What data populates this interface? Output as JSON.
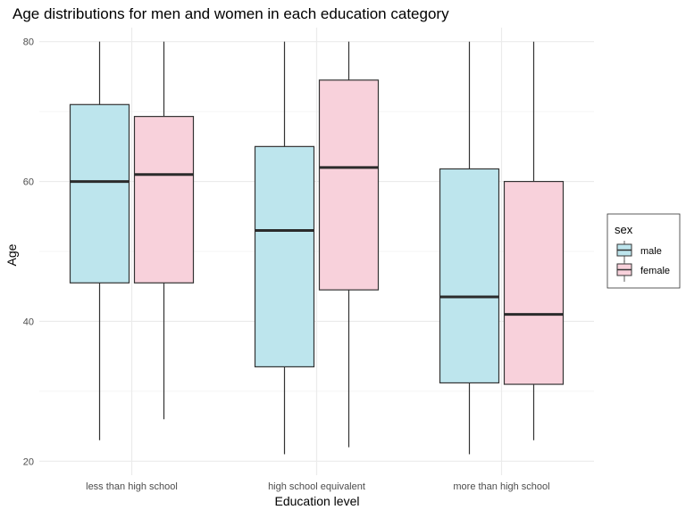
{
  "chart_data": {
    "type": "boxplot",
    "title": "Age distributions for men and women in each education category",
    "xlabel": "Education level",
    "ylabel": "Age",
    "ylim": [
      18,
      82
    ],
    "yticks": [
      20,
      40,
      60,
      80
    ],
    "grid": true,
    "legend": {
      "title": "sex",
      "position": "right",
      "entries": [
        "male",
        "female"
      ]
    },
    "colors": {
      "male": "#bde5ed",
      "female": "#f8d1db",
      "box_stroke": "#333333",
      "median": "#2b2b2b",
      "grid": "#ebebeb"
    },
    "categories": [
      "less than high school",
      "high school equivalent",
      "more than high school"
    ],
    "series": [
      {
        "name": "male",
        "boxes": [
          {
            "min": 23,
            "q1": 45.5,
            "median": 60,
            "q3": 71,
            "max": 80
          },
          {
            "min": 21,
            "q1": 33.5,
            "median": 53,
            "q3": 65,
            "max": 80
          },
          {
            "min": 21,
            "q1": 31.2,
            "median": 43.5,
            "q3": 61.8,
            "max": 80
          }
        ]
      },
      {
        "name": "female",
        "boxes": [
          {
            "min": 26,
            "q1": 45.5,
            "median": 61,
            "q3": 69.3,
            "max": 80
          },
          {
            "min": 22,
            "q1": 44.5,
            "median": 62,
            "q3": 74.5,
            "max": 80
          },
          {
            "min": 23,
            "q1": 31,
            "median": 41,
            "q3": 60,
            "max": 80
          }
        ]
      }
    ]
  }
}
